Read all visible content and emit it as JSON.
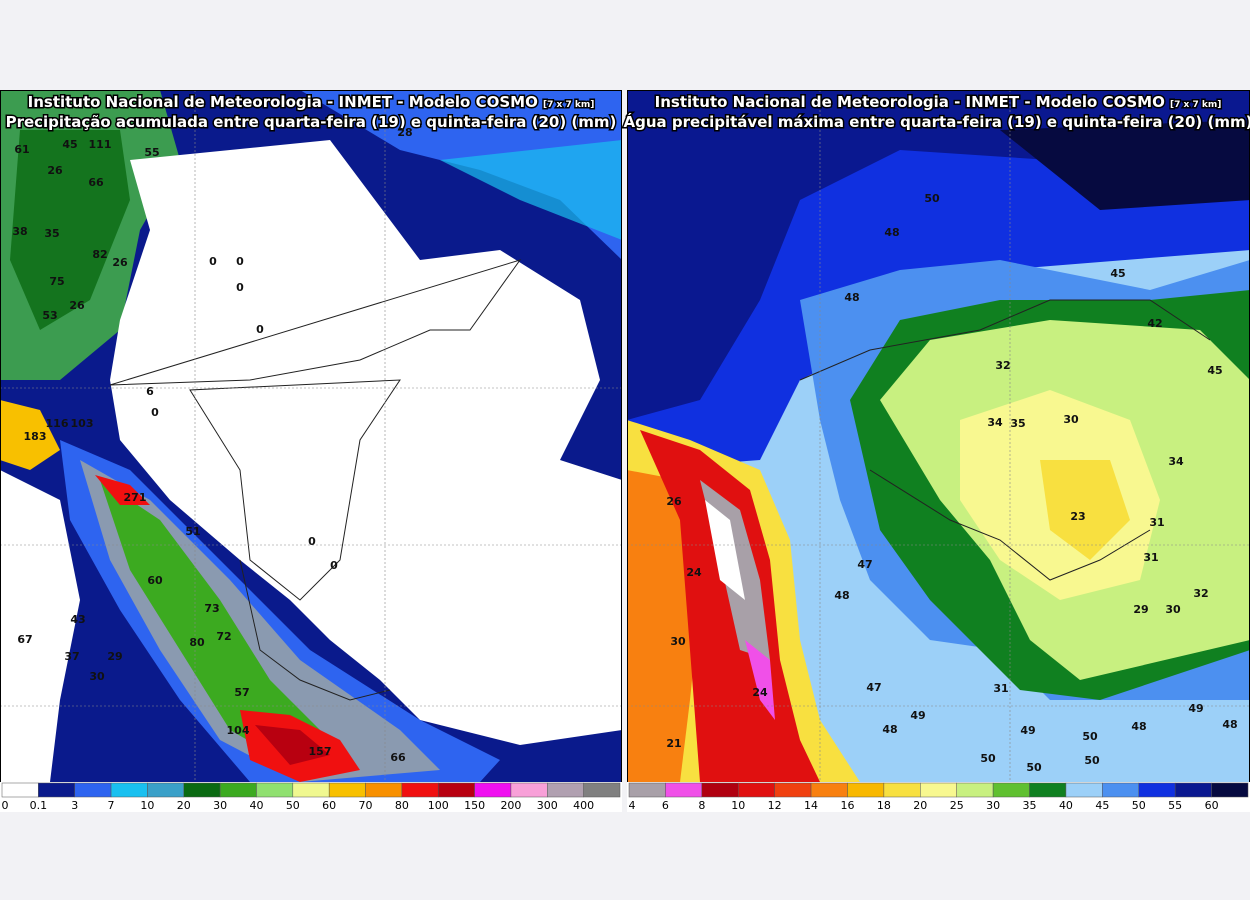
{
  "left_panel": {
    "title": "Instituto Nacional de Meteorologia - INMET - Modelo COSMO",
    "resolution": "[7 x 7 km]",
    "subtitle": "Precipitação acumulada entre quarta-feira (19) e quinta-feira (20) (mm)",
    "colorbar": {
      "labels": [
        0,
        0.1,
        3,
        7,
        10,
        20,
        30,
        40,
        50,
        60,
        70,
        80,
        100,
        150,
        200,
        300,
        400
      ],
      "colors": [
        "#ffffff",
        "#0a1a8c",
        "#2e64f0",
        "#19c0f0",
        "#3aa0c8",
        "#0a6a12",
        "#3caa20",
        "#90e070",
        "#f0f890",
        "#f8c000",
        "#f89000",
        "#f01010",
        "#b80010",
        "#f010f0",
        "#f8a0d8",
        "#b0a0b0",
        "#808080"
      ]
    },
    "map_labels": [
      61,
      45,
      111,
      55,
      28,
      66,
      26,
      38,
      35,
      82,
      26,
      75,
      26,
      53,
      0,
      0,
      0,
      0,
      6,
      0,
      116,
      103,
      183,
      271,
      51,
      0,
      0,
      60,
      73,
      43,
      72,
      80,
      67,
      37,
      29,
      30,
      57,
      104,
      157,
      66
    ]
  },
  "right_panel": {
    "title": "Instituto Nacional de Meteorologia - INMET - Modelo COSMO",
    "resolution": "[7 x 7 km]",
    "subtitle": "Água precipitável máxima entre quarta-feira (19) e quinta-feira (20) (mm)",
    "colorbar": {
      "labels": [
        4,
        6,
        8,
        10,
        12,
        14,
        16,
        18,
        20,
        25,
        30,
        35,
        40,
        45,
        50,
        55,
        60
      ],
      "colors": [
        "#a8a0a8",
        "#f050e8",
        "#b00010",
        "#e01010",
        "#f04010",
        "#f88010",
        "#f8b800",
        "#f8e040",
        "#f8f890",
        "#c8f080",
        "#60c030",
        "#108020",
        "#9cd0f8",
        "#4c90f0",
        "#1030e0",
        "#0a1890",
        "#060a40"
      ]
    },
    "map_labels": [
      50,
      48,
      48,
      45,
      42,
      32,
      45,
      34,
      35,
      30,
      34,
      23,
      31,
      31,
      26,
      47,
      48,
      24,
      30,
      29,
      30,
      32,
      24,
      47,
      48,
      49,
      49,
      50,
      48,
      49,
      48,
      50,
      50,
      50,
      21,
      31
    ]
  }
}
